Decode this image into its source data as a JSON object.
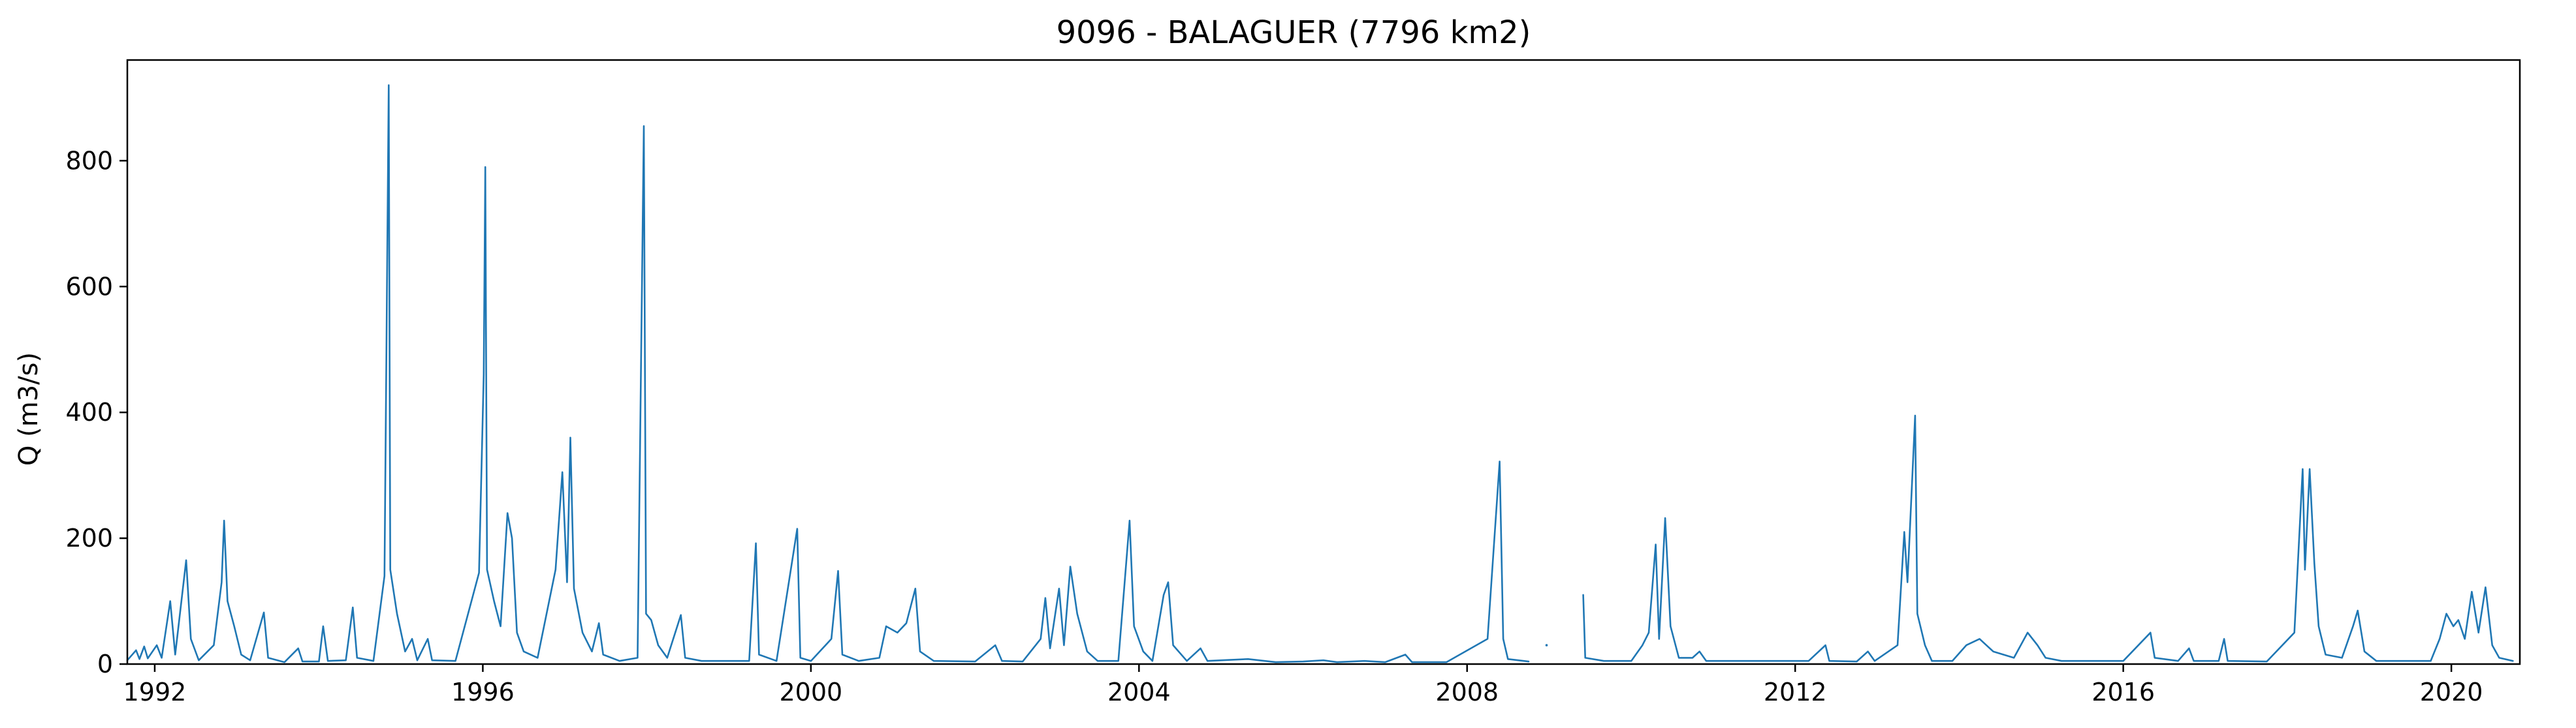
{
  "chart_data": {
    "type": "line",
    "title": "9096 - BALAGUER (7796 km2)",
    "xlabel": "",
    "ylabel": "Q (m3/s)",
    "xlim": [
      "1991-09-01",
      "2020-11-01"
    ],
    "ylim": [
      0,
      960
    ],
    "x_ticks": [
      "1992",
      "1996",
      "2000",
      "2004",
      "2008",
      "2012",
      "2016",
      "2020"
    ],
    "y_ticks": [
      0,
      200,
      400,
      600,
      800
    ],
    "grid": false,
    "legend": "none",
    "colors": {
      "series": "#1f77b4",
      "axes": "#000000",
      "background": "#ffffff"
    },
    "series": [
      {
        "values": [
          [
            "1991-09-01",
            6
          ],
          [
            "1991-10-10",
            22
          ],
          [
            "1991-10-25",
            8
          ],
          [
            "1991-11-15",
            28
          ],
          [
            "1991-12-01",
            9
          ],
          [
            "1992-01-10",
            30
          ],
          [
            "1992-02-01",
            10
          ],
          [
            "1992-03-10",
            100
          ],
          [
            "1992-04-01",
            15
          ],
          [
            "1992-05-20",
            165
          ],
          [
            "1992-06-10",
            40
          ],
          [
            "1992-07-15",
            6
          ],
          [
            "1992-09-20",
            30
          ],
          [
            "1992-10-25",
            130
          ],
          [
            "1992-11-05",
            228
          ],
          [
            "1992-11-20",
            100
          ],
          [
            "1992-12-20",
            60
          ],
          [
            "1993-01-20",
            15
          ],
          [
            "1993-03-01",
            6
          ],
          [
            "1993-05-01",
            82
          ],
          [
            "1993-05-20",
            10
          ],
          [
            "1993-08-01",
            3
          ],
          [
            "1993-10-01",
            25
          ],
          [
            "1993-10-20",
            4
          ],
          [
            "1994-01-01",
            4
          ],
          [
            "1994-01-20",
            60
          ],
          [
            "1994-02-10",
            5
          ],
          [
            "1994-05-01",
            6
          ],
          [
            "1994-06-01",
            90
          ],
          [
            "1994-06-20",
            10
          ],
          [
            "1994-09-01",
            5
          ],
          [
            "1994-10-20",
            140
          ],
          [
            "1994-11-08",
            920
          ],
          [
            "1994-11-15",
            150
          ],
          [
            "1994-12-15",
            80
          ],
          [
            "1995-01-20",
            20
          ],
          [
            "1995-02-20",
            40
          ],
          [
            "1995-03-15",
            6
          ],
          [
            "1995-05-01",
            40
          ],
          [
            "1995-05-20",
            6
          ],
          [
            "1995-09-01",
            5
          ],
          [
            "1995-12-15",
            145
          ],
          [
            "1996-01-05",
            460
          ],
          [
            "1996-01-12",
            790
          ],
          [
            "1996-01-20",
            150
          ],
          [
            "1996-02-20",
            100
          ],
          [
            "1996-03-20",
            60
          ],
          [
            "1996-04-20",
            240
          ],
          [
            "1996-05-10",
            200
          ],
          [
            "1996-06-01",
            50
          ],
          [
            "1996-07-01",
            20
          ],
          [
            "1996-09-01",
            10
          ],
          [
            "1996-11-20",
            150
          ],
          [
            "1996-12-20",
            305
          ],
          [
            "1997-01-10",
            130
          ],
          [
            "1997-01-25",
            360
          ],
          [
            "1997-02-10",
            120
          ],
          [
            "1997-03-20",
            50
          ],
          [
            "1997-05-01",
            20
          ],
          [
            "1997-06-01",
            65
          ],
          [
            "1997-06-20",
            15
          ],
          [
            "1997-09-01",
            5
          ],
          [
            "1997-11-20",
            10
          ],
          [
            "1997-12-18",
            855
          ],
          [
            "1997-12-28",
            80
          ],
          [
            "1998-01-20",
            70
          ],
          [
            "1998-02-20",
            30
          ],
          [
            "1998-04-01",
            10
          ],
          [
            "1998-06-01",
            78
          ],
          [
            "1998-06-20",
            10
          ],
          [
            "1998-09-01",
            5
          ],
          [
            "1999-01-01",
            5
          ],
          [
            "1999-04-01",
            5
          ],
          [
            "1999-05-01",
            192
          ],
          [
            "1999-05-15",
            15
          ],
          [
            "1999-08-01",
            5
          ],
          [
            "1999-11-01",
            215
          ],
          [
            "1999-11-15",
            10
          ],
          [
            "2000-01-01",
            5
          ],
          [
            "2000-04-01",
            40
          ],
          [
            "2000-05-01",
            148
          ],
          [
            "2000-05-20",
            15
          ],
          [
            "2000-08-01",
            5
          ],
          [
            "2000-11-01",
            10
          ],
          [
            "2000-12-01",
            60
          ],
          [
            "2001-01-20",
            50
          ],
          [
            "2001-03-01",
            65
          ],
          [
            "2001-04-10",
            120
          ],
          [
            "2001-05-01",
            20
          ],
          [
            "2001-07-01",
            5
          ],
          [
            "2002-01-01",
            4
          ],
          [
            "2002-04-01",
            30
          ],
          [
            "2002-05-01",
            5
          ],
          [
            "2002-08-01",
            4
          ],
          [
            "2002-10-20",
            40
          ],
          [
            "2002-11-10",
            105
          ],
          [
            "2002-12-01",
            25
          ],
          [
            "2003-01-10",
            120
          ],
          [
            "2003-02-01",
            30
          ],
          [
            "2003-03-01",
            155
          ],
          [
            "2003-04-01",
            80
          ],
          [
            "2003-05-15",
            20
          ],
          [
            "2003-07-01",
            5
          ],
          [
            "2003-10-01",
            5
          ],
          [
            "2003-11-20",
            228
          ],
          [
            "2003-12-10",
            60
          ],
          [
            "2004-01-20",
            20
          ],
          [
            "2004-03-01",
            5
          ],
          [
            "2004-04-20",
            110
          ],
          [
            "2004-05-10",
            130
          ],
          [
            "2004-06-01",
            30
          ],
          [
            "2004-08-01",
            5
          ],
          [
            "2004-10-01",
            25
          ],
          [
            "2004-11-01",
            5
          ],
          [
            "2005-05-01",
            8
          ],
          [
            "2005-09-01",
            3
          ],
          [
            "2006-01-01",
            4
          ],
          [
            "2006-04-01",
            6
          ],
          [
            "2006-06-01",
            3
          ],
          [
            "2006-10-01",
            5
          ],
          [
            "2007-01-01",
            3
          ],
          [
            "2007-04-01",
            15
          ],
          [
            "2007-05-01",
            3
          ],
          [
            "2007-10-01",
            3
          ],
          [
            "2008-04-01",
            40
          ],
          [
            "2008-05-25",
            322
          ],
          [
            "2008-06-10",
            40
          ],
          [
            "2008-07-01",
            8
          ],
          [
            "2008-10-01",
            4
          ],
          null,
          [
            "2009-06-01",
            110
          ],
          [
            "2009-06-10",
            10
          ],
          [
            "2009-09-01",
            5
          ],
          [
            "2010-01-01",
            5
          ],
          [
            "2010-02-20",
            30
          ],
          [
            "2010-03-20",
            50
          ],
          [
            "2010-04-20",
            190
          ],
          [
            "2010-05-05",
            40
          ],
          [
            "2010-06-01",
            232
          ],
          [
            "2010-06-25",
            60
          ],
          [
            "2010-08-01",
            10
          ],
          [
            "2010-10-01",
            10
          ],
          [
            "2010-11-01",
            20
          ],
          [
            "2010-12-01",
            5
          ],
          [
            "2011-06-01",
            5
          ],
          [
            "2012-03-01",
            5
          ],
          [
            "2012-05-15",
            30
          ],
          [
            "2012-06-01",
            5
          ],
          [
            "2012-10-01",
            4
          ],
          [
            "2012-11-20",
            20
          ],
          [
            "2012-12-20",
            5
          ],
          [
            "2013-04-01",
            30
          ],
          [
            "2013-05-01",
            210
          ],
          [
            "2013-05-15",
            130
          ],
          [
            "2013-06-18",
            395
          ],
          [
            "2013-06-28",
            80
          ],
          [
            "2013-08-01",
            30
          ],
          [
            "2013-09-01",
            5
          ],
          [
            "2013-12-01",
            5
          ],
          [
            "2014-02-01",
            30
          ],
          [
            "2014-04-01",
            40
          ],
          [
            "2014-06-01",
            20
          ],
          [
            "2014-09-01",
            10
          ],
          [
            "2014-11-01",
            50
          ],
          [
            "2014-12-15",
            30
          ],
          [
            "2015-01-20",
            10
          ],
          [
            "2015-04-01",
            5
          ],
          [
            "2016-01-01",
            5
          ],
          [
            "2016-05-01",
            50
          ],
          [
            "2016-05-20",
            10
          ],
          [
            "2016-09-01",
            5
          ],
          [
            "2016-10-20",
            25
          ],
          [
            "2016-11-10",
            5
          ],
          [
            "2017-03-01",
            5
          ],
          [
            "2017-03-25",
            40
          ],
          [
            "2017-04-10",
            5
          ],
          [
            "2017-10-01",
            4
          ],
          [
            "2018-02-01",
            50
          ],
          [
            "2018-03-10",
            310
          ],
          [
            "2018-03-20",
            150
          ],
          [
            "2018-04-10",
            310
          ],
          [
            "2018-05-01",
            160
          ],
          [
            "2018-05-20",
            60
          ],
          [
            "2018-06-20",
            15
          ],
          [
            "2018-09-01",
            10
          ],
          [
            "2018-10-20",
            60
          ],
          [
            "2018-11-10",
            85
          ],
          [
            "2018-12-10",
            20
          ],
          [
            "2019-02-01",
            5
          ],
          [
            "2019-10-01",
            5
          ],
          [
            "2019-11-10",
            40
          ],
          [
            "2019-12-10",
            80
          ],
          [
            "2020-01-10",
            60
          ],
          [
            "2020-02-01",
            70
          ],
          [
            "2020-03-01",
            40
          ],
          [
            "2020-04-01",
            115
          ],
          [
            "2020-05-01",
            50
          ],
          [
            "2020-06-01",
            122
          ],
          [
            "2020-07-01",
            30
          ],
          [
            "2020-08-01",
            10
          ],
          [
            "2020-10-01",
            5
          ]
        ]
      }
    ],
    "isolated_points": [
      [
        "2008-12-20",
        30
      ]
    ]
  }
}
